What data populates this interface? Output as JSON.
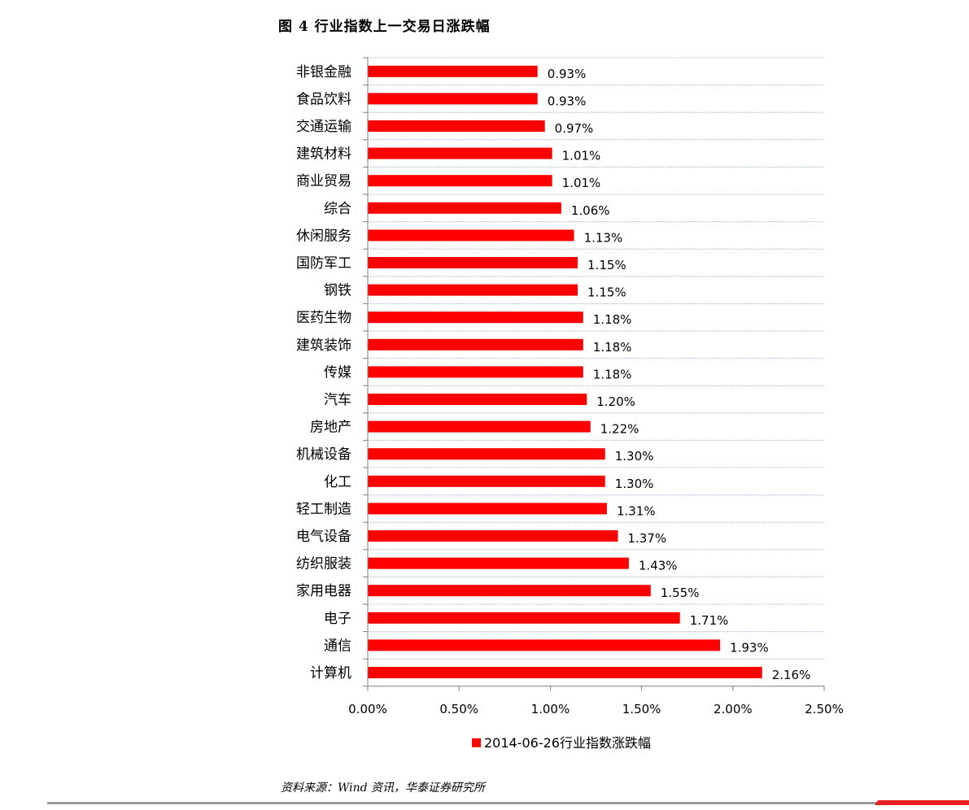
{
  "figure": {
    "title": "图 4   行业指数上一交易日涨跌幅",
    "source": "资料来源：Wind 资讯，华泰证券研究所"
  },
  "chart_data": {
    "type": "bar",
    "orientation": "horizontal",
    "categories": [
      "非银金融",
      "食品饮料",
      "交通运输",
      "建筑材料",
      "商业贸易",
      "综合",
      "休闲服务",
      "国防军工",
      "钢铁",
      "医药生物",
      "建筑装饰",
      "传媒",
      "汽车",
      "房地产",
      "机械设备",
      "化工",
      "轻工制造",
      "电气设备",
      "纺织服装",
      "家用电器",
      "电子",
      "通信",
      "计算机"
    ],
    "series": [
      {
        "name": "2014-06-26行业指数涨跌幅",
        "values": [
          0.93,
          0.93,
          0.97,
          1.01,
          1.01,
          1.06,
          1.13,
          1.15,
          1.15,
          1.18,
          1.18,
          1.18,
          1.2,
          1.22,
          1.3,
          1.3,
          1.31,
          1.37,
          1.43,
          1.55,
          1.71,
          1.93,
          2.16
        ],
        "labels": [
          "0.93%",
          "0.93%",
          "0.97%",
          "1.01%",
          "1.01%",
          "1.06%",
          "1.13%",
          "1.15%",
          "1.15%",
          "1.18%",
          "1.18%",
          "1.18%",
          "1.20%",
          "1.22%",
          "1.30%",
          "1.30%",
          "1.31%",
          "1.37%",
          "1.43%",
          "1.55%",
          "1.71%",
          "1.93%",
          "2.16%"
        ],
        "color": "#ff0000"
      }
    ],
    "xlim": [
      0,
      2.5
    ],
    "xticks": [
      0,
      0.5,
      1.0,
      1.5,
      2.0,
      2.5
    ],
    "xtick_labels": [
      "0.00%",
      "0.50%",
      "1.00%",
      "1.50%",
      "2.00%",
      "2.50%"
    ],
    "grid": true,
    "grid_color": "#9db3d8",
    "legend_position": "bottom"
  }
}
